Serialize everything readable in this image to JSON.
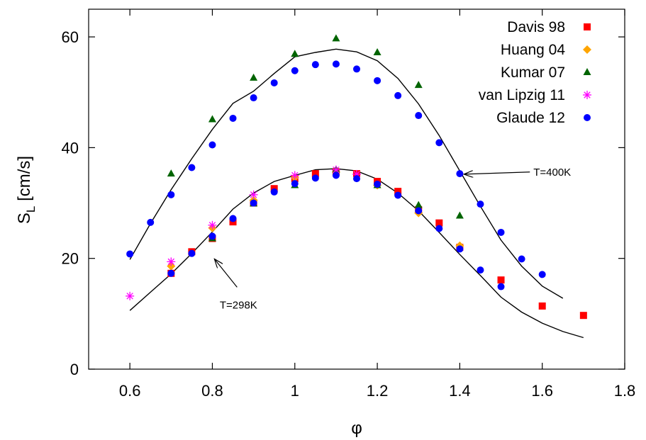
{
  "chart_data": {
    "type": "scatter",
    "xlabel": "φ",
    "ylabel_main": "S",
    "ylabel_sub": "L",
    "ylabel_unit": " [cm/s]",
    "xlim": [
      0.5,
      1.8
    ],
    "ylim": [
      0,
      65
    ],
    "xticks": [
      0.6,
      0.8,
      1,
      1.2,
      1.4,
      1.6,
      1.8
    ],
    "xtick_labels": [
      "0.6",
      "0.8",
      "1",
      "1.2",
      "1.4",
      "1.6",
      "1.8"
    ],
    "yticks": [
      0,
      20,
      40,
      60
    ],
    "ytick_labels": [
      "0",
      "20",
      "40",
      "60"
    ],
    "legend_position": "top-right",
    "series": [
      {
        "name": "Davis 98",
        "marker": "square",
        "color": "#ff0000",
        "x": [
          0.7,
          0.75,
          0.8,
          0.85,
          0.9,
          0.95,
          1.0,
          1.05,
          1.1,
          1.15,
          1.2,
          1.25,
          1.3,
          1.35,
          1.4,
          1.5,
          1.6,
          1.7
        ],
        "y": [
          17.3,
          21.2,
          23.6,
          26.6,
          30.0,
          32.6,
          34.4,
          35.3,
          35.6,
          35.3,
          33.9,
          32.1,
          28.8,
          26.4,
          22.0,
          16.1,
          11.4,
          9.7
        ]
      },
      {
        "name": "Huang 04",
        "marker": "diamond",
        "color": "#ffa500",
        "x": [
          0.7,
          0.8,
          0.9,
          1.0,
          1.1,
          1.2,
          1.3,
          1.4
        ],
        "y": [
          18.6,
          25.5,
          30.5,
          34.6,
          35.6,
          33.2,
          28.2,
          22.3
        ]
      },
      {
        "name": "Kumar 07",
        "marker": "triangle",
        "color": "#006400",
        "x": [
          0.7,
          0.8,
          0.9,
          1.0,
          1.1,
          1.2,
          1.3,
          1.4,
          0.8,
          0.9,
          1.0,
          1.1,
          1.2,
          1.3
        ],
        "y": [
          35.3,
          45.1,
          52.6,
          56.9,
          59.7,
          57.2,
          51.3,
          27.7,
          23.6,
          29.9,
          33.2,
          36.0,
          33.2,
          29.6
        ]
      },
      {
        "name": "van Lipzig 11",
        "marker": "star",
        "color": "#ff00ff",
        "x": [
          0.6,
          0.7,
          0.8,
          0.9,
          1.0,
          1.1,
          1.15
        ],
        "y": [
          13.2,
          19.4,
          26.0,
          31.5,
          35.0,
          36.0,
          35.2
        ]
      },
      {
        "name": "Glaude 12",
        "marker": "circle",
        "color": "#0000ff",
        "x": [
          0.6,
          0.65,
          0.7,
          0.75,
          0.8,
          0.85,
          0.9,
          0.95,
          1.0,
          1.05,
          1.1,
          1.15,
          1.2,
          1.25,
          1.3,
          1.35,
          1.4,
          1.45,
          1.5,
          1.55,
          1.6,
          0.7,
          0.75,
          0.8,
          0.85,
          0.9,
          0.95,
          1.0,
          1.05,
          1.1,
          1.15,
          1.2,
          1.25,
          1.3,
          1.35,
          1.4,
          1.45,
          1.5
        ],
        "y": [
          20.8,
          26.5,
          31.5,
          36.4,
          40.5,
          45.3,
          49.0,
          51.7,
          53.9,
          55.0,
          55.1,
          54.2,
          52.1,
          49.4,
          45.8,
          40.9,
          35.3,
          29.8,
          24.7,
          19.9,
          17.1,
          17.3,
          20.9,
          24.0,
          27.2,
          30.0,
          32.0,
          33.5,
          34.5,
          35.0,
          34.4,
          33.4,
          31.4,
          28.6,
          25.4,
          21.7,
          17.9,
          14.9
        ]
      }
    ],
    "model_lines": [
      {
        "label": "T=400K",
        "x": [
          0.6,
          0.65,
          0.7,
          0.75,
          0.8,
          0.85,
          0.9,
          0.95,
          1.0,
          1.05,
          1.1,
          1.15,
          1.2,
          1.25,
          1.3,
          1.35,
          1.4,
          1.45,
          1.5,
          1.55,
          1.6,
          1.65
        ],
        "y": [
          19.8,
          26.3,
          32.4,
          38.0,
          43.3,
          48.0,
          50.2,
          53.4,
          56.4,
          57.2,
          57.8,
          57.3,
          55.7,
          52.5,
          47.9,
          42.2,
          35.8,
          29.4,
          23.3,
          18.6,
          15.0,
          12.8
        ]
      },
      {
        "label": "T=298K",
        "x": [
          0.6,
          0.65,
          0.7,
          0.75,
          0.8,
          0.85,
          0.9,
          0.95,
          1.0,
          1.05,
          1.1,
          1.15,
          1.2,
          1.25,
          1.3,
          1.35,
          1.4,
          1.45,
          1.5,
          1.55,
          1.6,
          1.65,
          1.7
        ],
        "y": [
          10.6,
          13.9,
          17.2,
          20.9,
          24.8,
          28.9,
          31.8,
          33.9,
          35.0,
          36.0,
          36.2,
          35.8,
          34.3,
          31.8,
          28.6,
          24.7,
          20.7,
          16.9,
          13.0,
          10.3,
          8.3,
          6.8,
          5.7
        ]
      }
    ],
    "annotations": [
      {
        "text": "T=400K",
        "arrow_from": [
          1.57,
          35.6
        ],
        "arrow_to": [
          1.41,
          35.2
        ]
      },
      {
        "text": "T=298K",
        "arrow_from": [
          0.86,
          14.8
        ],
        "arrow_to": [
          0.805,
          19.9
        ]
      }
    ]
  }
}
